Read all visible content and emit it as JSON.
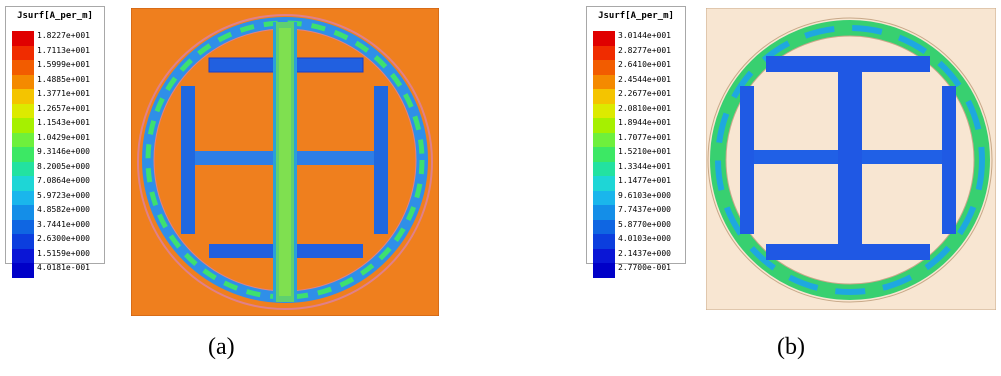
{
  "panel_a": {
    "caption": "(a)",
    "legend": {
      "title": "Jsurf[A_per_m]",
      "values": [
        "1.8227e+001",
        "1.7113e+001",
        "1.5999e+001",
        "1.4885e+001",
        "1.3771e+001",
        "1.2657e+001",
        "1.1543e+001",
        "1.0429e+001",
        "9.3146e+000",
        "8.2005e+000",
        "7.0864e+000",
        "5.9723e+000",
        "4.8582e+000",
        "3.7441e+000",
        "2.6300e+000",
        "1.5159e+000",
        "4.0181e-001"
      ]
    },
    "background_color": "#ef7f1e"
  },
  "panel_b": {
    "caption": "(b)",
    "legend": {
      "title": "Jsurf[A_per_m]",
      "values": [
        "3.0144e+001",
        "2.8277e+001",
        "2.6410e+001",
        "2.4544e+001",
        "2.2677e+001",
        "2.0810e+001",
        "1.8944e+001",
        "1.7077e+001",
        "1.5210e+001",
        "1.3344e+001",
        "1.1477e+001",
        "9.6103e+000",
        "7.7437e+000",
        "5.8770e+000",
        "4.0103e+000",
        "2.1437e+000",
        "2.7700e-001"
      ]
    },
    "background_color": "#f8e6d2"
  },
  "colormap": [
    "#e00000",
    "#f02c00",
    "#f25c00",
    "#f48a00",
    "#f4c400",
    "#dcea00",
    "#a6f000",
    "#6ef03c",
    "#3ce864",
    "#23e2a0",
    "#1ed6d6",
    "#1ab6ec",
    "#148ee8",
    "#0f66e2",
    "#0c3ede",
    "#0a16d6",
    "#0000c8"
  ]
}
